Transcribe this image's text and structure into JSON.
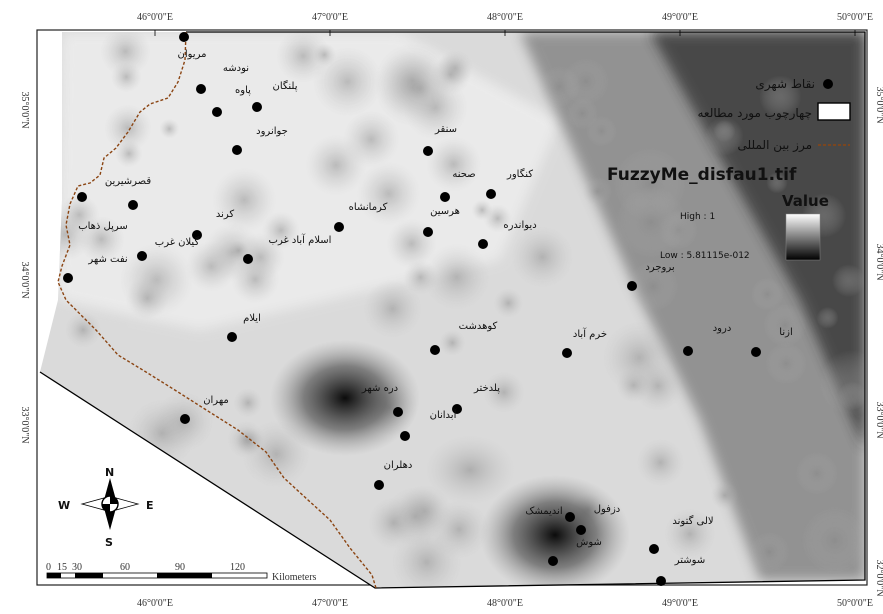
{
  "map": {
    "raster_title": "FuzzyMe_disfau1.tif",
    "value_label": "Value",
    "high_label": "High : 1",
    "low_label": "Low : 5.81115e-012",
    "ramp_colors": [
      "#ffffff",
      "#000000"
    ]
  },
  "legend": {
    "points_label": "نقاط شهری",
    "frame_label": "چهارچوب مورد مطالعه",
    "border_label": "مرز بین المللی"
  },
  "grid": {
    "top_ticks": [
      "46°0'0\"E",
      "47°0'0\"E",
      "48°0'0\"E",
      "49°0'0\"E",
      "50°0'0\"E"
    ],
    "bottom_ticks": [
      "46°0'0\"E",
      "47°0'0\"E",
      "48°0'0\"E",
      "49°0'0\"E",
      "50°0'0\"E"
    ],
    "left_ticks": [
      "35°0'0\"N",
      "34°0'0\"N",
      "33°0'0\"N"
    ],
    "right_ticks": [
      "35°0'0\"N",
      "34°0'0\"N",
      "33°0'0\"N",
      "32°0'0\"N"
    ]
  },
  "compass": {
    "n": "N",
    "s": "S",
    "e": "E",
    "w": "W"
  },
  "scale": {
    "labels": [
      "0",
      "15",
      "30",
      "60",
      "90",
      "120"
    ],
    "unit": "Kilometers"
  },
  "cities": [
    {
      "name": "مریوان"
    },
    {
      "name": "نودشه"
    },
    {
      "name": "پاوه"
    },
    {
      "name": "پلنگان"
    },
    {
      "name": "جوانرود"
    },
    {
      "name": "سنقر"
    },
    {
      "name": "کنگاور"
    },
    {
      "name": "صحنه"
    },
    {
      "name": "قصرشیرین"
    },
    {
      "name": "سرپل ذهاب"
    },
    {
      "name": "کرند"
    },
    {
      "name": "گیلان غرب"
    },
    {
      "name": "نفت شهر"
    },
    {
      "name": "اسلام آباد غرب"
    },
    {
      "name": "کرمانشاه"
    },
    {
      "name": "هرسین"
    },
    {
      "name": "دیواندره"
    },
    {
      "name": "بروجرد"
    },
    {
      "name": "ایلام"
    },
    {
      "name": "کوهدشت"
    },
    {
      "name": "خرم آباد"
    },
    {
      "name": "درود"
    },
    {
      "name": "ازنا"
    },
    {
      "name": "دره شهر"
    },
    {
      "name": "پلدختر"
    },
    {
      "name": "آبدانان"
    },
    {
      "name": "مهران"
    },
    {
      "name": "دهلران"
    },
    {
      "name": "اندیمشک"
    },
    {
      "name": "دزفول"
    },
    {
      "name": "شوش"
    },
    {
      "name": "لالی گتوند"
    },
    {
      "name": "شوشتر"
    }
  ]
}
